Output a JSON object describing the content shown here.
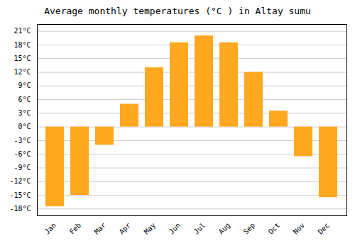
{
  "chart_data": {
    "type": "bar",
    "title": "Average monthly temperatures (°C ) in Altay sumu",
    "categories": [
      "Jan",
      "Feb",
      "Mar",
      "Apr",
      "May",
      "Jun",
      "Jul",
      "Aug",
      "Sep",
      "Oct",
      "Nov",
      "Dec"
    ],
    "values": [
      -17.5,
      -15.0,
      -4.0,
      5.0,
      13.0,
      18.5,
      20.0,
      18.5,
      12.0,
      3.5,
      -6.5,
      -15.5
    ],
    "color": "#FFA820",
    "ylim": [
      -19.5,
      22.5
    ],
    "yticks": [
      {
        "value": -18,
        "label": "-18°C"
      },
      {
        "value": -15,
        "label": "-15°C"
      },
      {
        "value": -12,
        "label": "-12°C"
      },
      {
        "value": -9,
        "label": "-9°C"
      },
      {
        "value": -6,
        "label": "-6°C"
      },
      {
        "value": -3,
        "label": "-3°C"
      },
      {
        "value": 0,
        "label": "0°C"
      },
      {
        "value": 3,
        "label": "3°C"
      },
      {
        "value": 6,
        "label": "6°C"
      },
      {
        "value": 9,
        "label": "9°C"
      },
      {
        "value": 12,
        "label": "12°C"
      },
      {
        "value": 15,
        "label": "15°C"
      },
      {
        "value": 18,
        "label": "18°C"
      },
      {
        "value": 21,
        "label": "21°C"
      }
    ],
    "grid": true
  }
}
